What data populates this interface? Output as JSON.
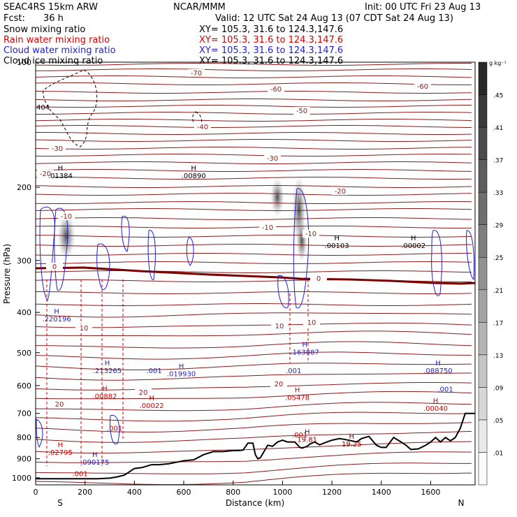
{
  "header": {
    "model": "SEAC4RS 15km ARW",
    "institution": "NCAR/MMM",
    "init": "Init: 00 UTC Fri 23 Aug 13",
    "fcst_label": "Fcst:",
    "fcst_value": "36 h",
    "valid": "Valid: 12 UTC Sat 24 Aug 13 (07 CDT Sat 24 Aug 13)"
  },
  "fields": [
    {
      "name": "Snow mixing ratio",
      "xy": "XY= 105.3, 31.6 to 124.3,147.6",
      "color": "#000000"
    },
    {
      "name": "Rain water mixing ratio",
      "xy": "XY= 105.3, 31.6 to 124.3,147.6",
      "color": "#d40000"
    },
    {
      "name": "Cloud water mixing ratio",
      "xy": "XY= 105.3, 31.6 to 124.3,147.6",
      "color": "#1f1fd0"
    },
    {
      "name": "Cloud ice mixing ratio",
      "xy": "XY= 105.3, 31.6 to 124.3,147.6",
      "color": "#000000"
    }
  ],
  "chart_data": {
    "type": "cross-section",
    "xlabel": "Distance (km)",
    "ylabel": "Pressure (hPa)",
    "xlim": [
      0,
      1780
    ],
    "ylim": [
      1040,
      100
    ],
    "y_scale": "log",
    "xticks": [
      0,
      200,
      400,
      600,
      800,
      1000,
      1200,
      1400,
      1600
    ],
    "yticks": [
      100,
      200,
      300,
      400,
      500,
      600,
      700,
      800,
      900,
      1000
    ],
    "endpoint_labels": [
      "S",
      "N"
    ],
    "colorbar": {
      "unit": "g kg⁻¹",
      "levels": [
        ".01",
        ".05",
        ".09",
        ".13",
        ".17",
        ".21",
        ".25",
        ".29",
        ".33",
        ".37",
        ".41",
        ".45"
      ]
    },
    "terrain": {
      "x": [
        0,
        50,
        150,
        250,
        300,
        330,
        360,
        400,
        430,
        470,
        500,
        540,
        600,
        640,
        680,
        720,
        760,
        800,
        820,
        840,
        860,
        880,
        890,
        900,
        910,
        940,
        960,
        980,
        1000,
        1020,
        1050,
        1070,
        1080,
        1100,
        1110,
        1130,
        1150,
        1180,
        1200,
        1230,
        1250,
        1280,
        1300,
        1320,
        1350,
        1380,
        1400,
        1420,
        1450,
        1480,
        1500,
        1520,
        1550,
        1580,
        1600,
        1620,
        1640,
        1660,
        1680,
        1700,
        1720,
        1740,
        1760,
        1780
      ],
      "p": [
        1005,
        1005,
        1005,
        1005,
        1002,
        995,
        985,
        950,
        945,
        930,
        930,
        925,
        910,
        905,
        880,
        865,
        865,
        860,
        860,
        858,
        825,
        825,
        880,
        900,
        895,
        835,
        840,
        820,
        812,
        820,
        820,
        845,
        848,
        840,
        830,
        820,
        833,
        820,
        812,
        805,
        808,
        815,
        820,
        805,
        795,
        835,
        845,
        845,
        800,
        820,
        835,
        855,
        852,
        835,
        820,
        800,
        820,
        800,
        815,
        800,
        760,
        700,
        700,
        700
      ]
    },
    "temperature_labels_C": [
      "-70",
      "-60",
      "-60",
      "-50",
      "-40",
      "-30",
      "-30",
      "-20",
      "-20",
      "-10",
      "-10",
      "-10",
      "0",
      "0",
      "10",
      "10",
      "10",
      "20",
      "20",
      "20"
    ],
    "maxima": [
      {
        "label": "H",
        "value": ".01384",
        "color": "#000000",
        "x": 100,
        "p": 190
      },
      {
        "label": "H",
        "value": ".00890",
        "color": "#000000",
        "x": 640,
        "p": 190
      },
      {
        "label": "H",
        "value": ".00103",
        "color": "#000000",
        "x": 1220,
        "p": 280
      },
      {
        "label": "H",
        "value": ".00002",
        "color": "#000000",
        "x": 1530,
        "p": 280
      },
      {
        "label": "",
        "value": "404",
        "color": "#000000",
        "x": 30,
        "p": 130
      },
      {
        "label": "H",
        "value": ".220196",
        "color": "#1f1fd0",
        "x": 85,
        "p": 420
      },
      {
        "label": "H",
        "value": ".213265",
        "color": "#1f1fd0",
        "x": 290,
        "p": 560
      },
      {
        "label": "",
        "value": ".001",
        "color": "#1f1fd0",
        "x": 480,
        "p": 560
      },
      {
        "label": "H",
        "value": ".019930",
        "color": "#1f1fd0",
        "x": 590,
        "p": 570
      },
      {
        "label": "H",
        "value": ".163887",
        "color": "#1f1fd0",
        "x": 1090,
        "p": 505
      },
      {
        "label": "",
        "value": ".001",
        "color": "#1f1fd0",
        "x": 1045,
        "p": 560
      },
      {
        "label": "H",
        "value": ".088750",
        "color": "#1f1fd0",
        "x": 1630,
        "p": 560
      },
      {
        "label": "",
        "value": ".001",
        "color": "#1f1fd0",
        "x": 1660,
        "p": 620
      },
      {
        "label": "H",
        "value": ".090175",
        "color": "#1f1fd0",
        "x": 240,
        "p": 930
      },
      {
        "label": "H",
        "value": ".00882",
        "color": "#d40000",
        "x": 280,
        "p": 645
      },
      {
        "label": "H",
        "value": ".00022",
        "color": "#d40000",
        "x": 470,
        "p": 680
      },
      {
        "label": "H",
        "value": ".05478",
        "color": "#d40000",
        "x": 1060,
        "p": 650
      },
      {
        "label": "H",
        "value": ".00040",
        "color": "#d40000",
        "x": 1620,
        "p": 690
      },
      {
        "label": "H",
        "value": ".02795",
        "color": "#d40000",
        "x": 100,
        "p": 880
      },
      {
        "label": "",
        "value": ".001",
        "color": "#d40000",
        "x": 180,
        "p": 990
      },
      {
        "label": "",
        "value": ".001",
        "color": "#d40000",
        "x": 320,
        "p": 770
      },
      {
        "label": "",
        "value": ".001",
        "color": "#d40000",
        "x": 1070,
        "p": 800
      },
      {
        "label": "H",
        "value": "19.81",
        "color": "#8b0000",
        "x": 1100,
        "p": 820
      },
      {
        "label": "H",
        "value": "19.25",
        "color": "#8b0000",
        "x": 1280,
        "p": 840
      }
    ]
  },
  "colors": {
    "isotherm": "#8b1a1a",
    "freezing_level": "#7a0000",
    "terrain": "#000000",
    "rain": "#d40000",
    "cloud_water": "#1f1fd0",
    "snow": "#000000"
  }
}
